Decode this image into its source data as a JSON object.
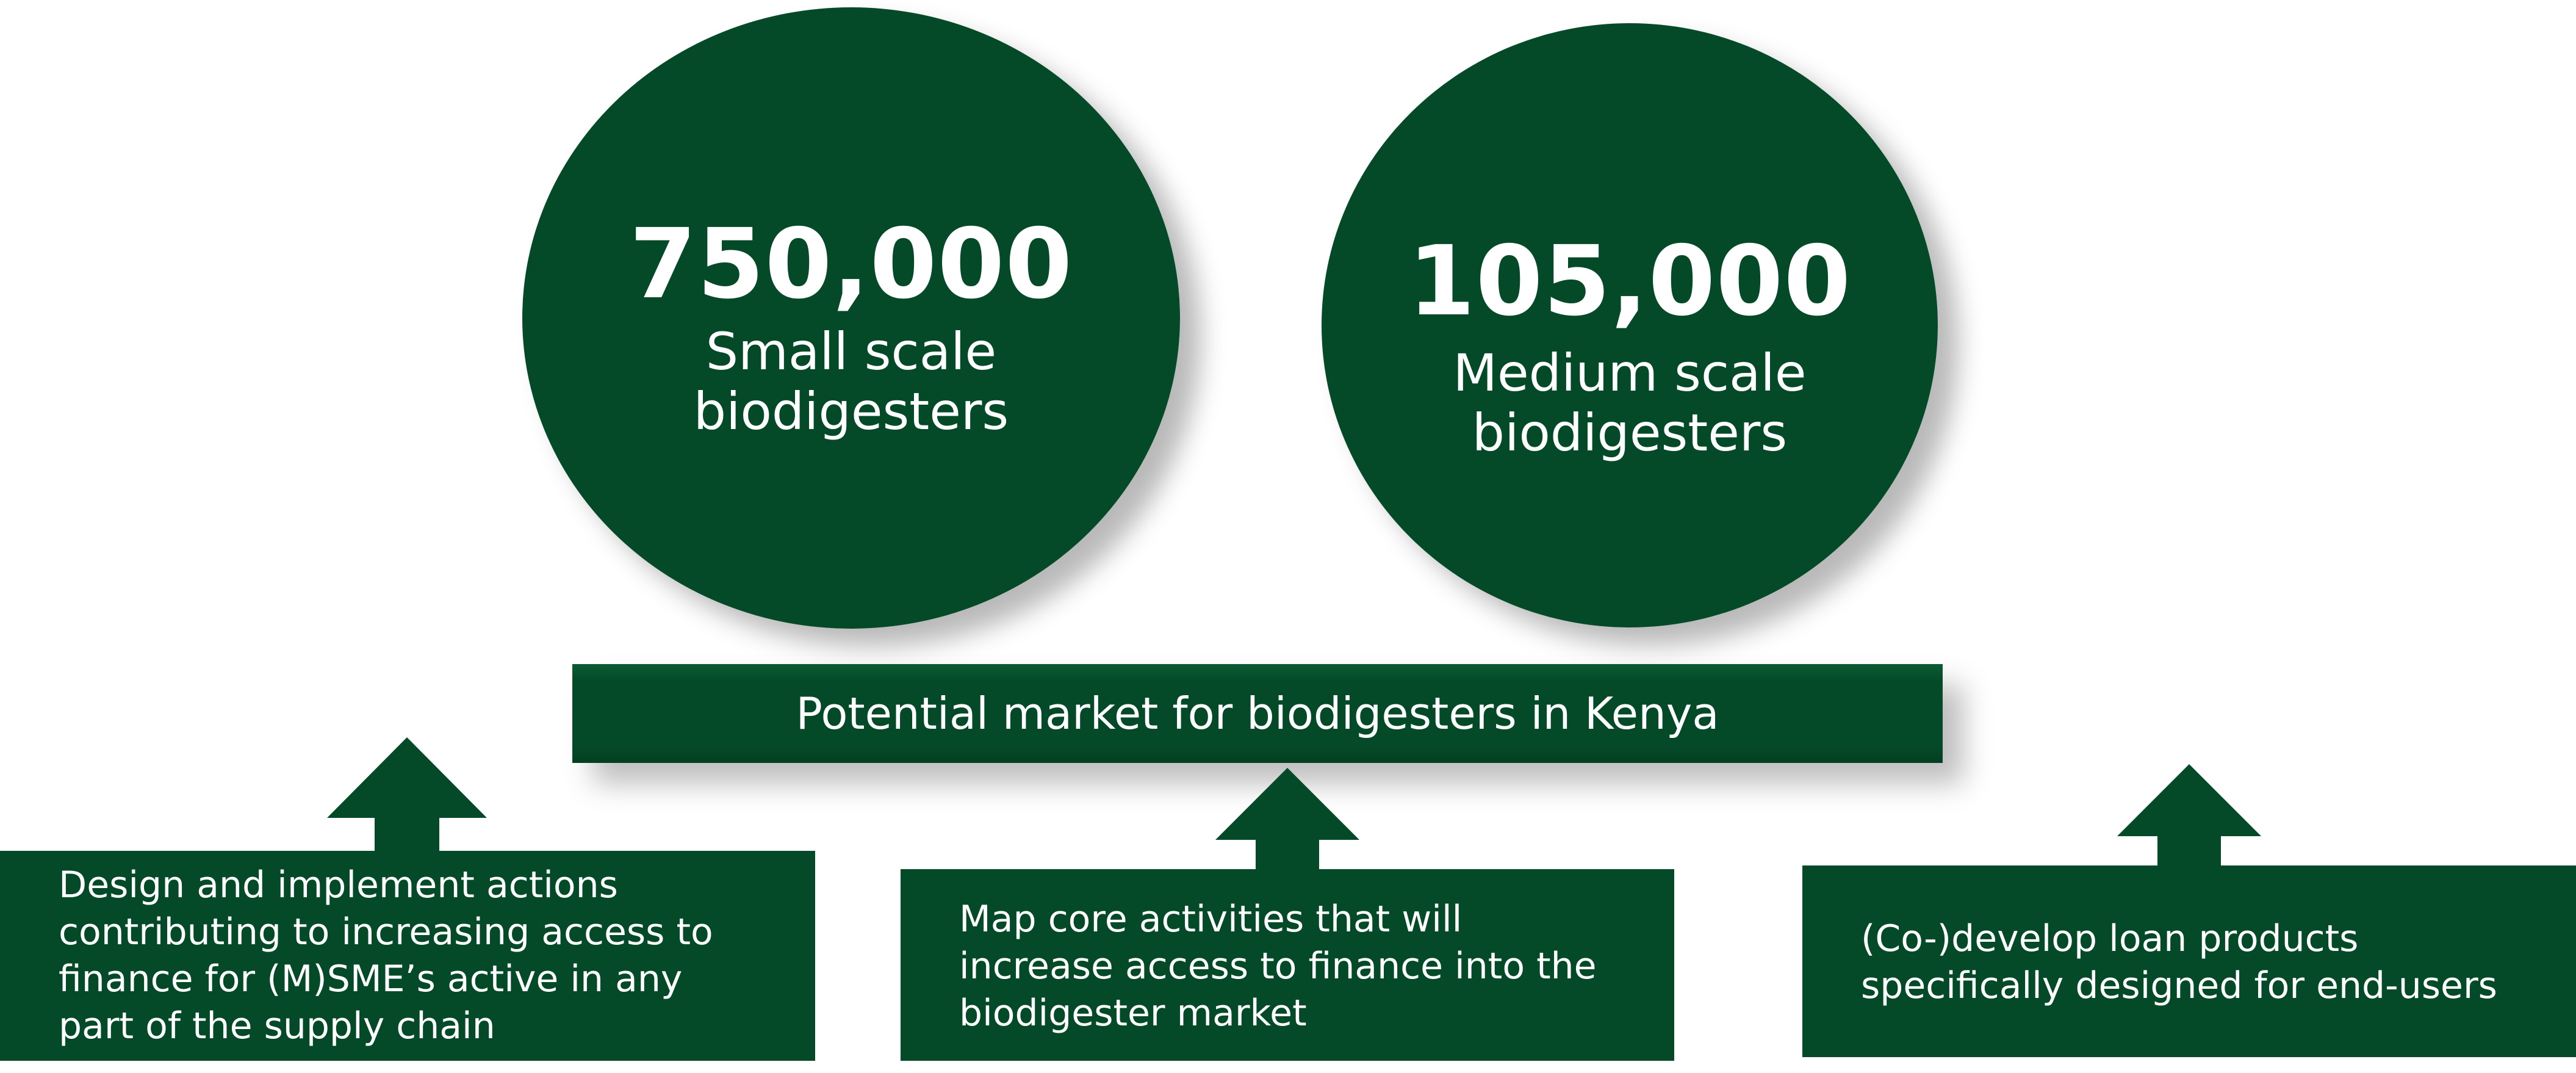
{
  "circles": {
    "small": {
      "value": "750,000",
      "label": "Small scale\nbiodigesters"
    },
    "medium": {
      "value": "105,000",
      "label": "Medium scale\nbiodigesters"
    }
  },
  "banner": {
    "text": "Potential market for biodigesters in Kenya"
  },
  "actions": {
    "left": {
      "lines": [
        "Design and implement actions",
        "contributing to increasing access to",
        "finance for (M)SME’s active in any",
        "part of the supply chain"
      ]
    },
    "middle": {
      "lines": [
        "Map core activities that will",
        "increase access to finance into the",
        "biodigester market"
      ]
    },
    "right": {
      "lines": [
        "(Co-)develop loan products",
        "specifically designed for end-users"
      ]
    }
  },
  "colors": {
    "primary_green": "#044a28",
    "text": "#ffffff",
    "background": "#ffffff"
  },
  "icons": {
    "arrows": "up-arrow-icon"
  }
}
